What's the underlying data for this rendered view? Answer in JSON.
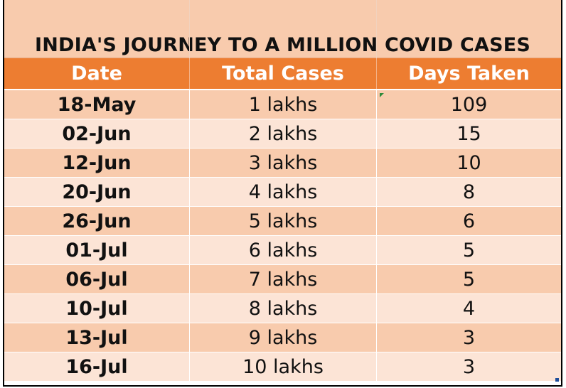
{
  "title": "INDIA'S JOURNEY TO A MILLION COVID CASES",
  "headers": [
    "Date",
    "Total Cases",
    "Days Taken"
  ],
  "rows": [
    {
      "date": "18-May",
      "cases": "1 lakhs",
      "days": "109"
    },
    {
      "date": "02-Jun",
      "cases": "2 lakhs",
      "days": "15"
    },
    {
      "date": "12-Jun",
      "cases": "3 lakhs",
      "days": "10"
    },
    {
      "date": "20-Jun",
      "cases": "4 lakhs",
      "days": "8"
    },
    {
      "date": "26-Jun",
      "cases": "5 lakhs",
      "days": "6"
    },
    {
      "date": "01-Jul",
      "cases": "6 lakhs",
      "days": "5"
    },
    {
      "date": "06-Jul",
      "cases": "7 lakhs",
      "days": "5"
    },
    {
      "date": "10-Jul",
      "cases": "8 lakhs",
      "days": "4"
    },
    {
      "date": "13-Jul",
      "cases": "9 lakhs",
      "days": "3"
    },
    {
      "date": "16-Jul",
      "cases": "10 lakhs",
      "days": "3"
    }
  ],
  "colors": {
    "title_bg": "#f8cbad",
    "header_bg": "#ed7d31",
    "row_odd": "#f8cbad",
    "row_even": "#fce4d6"
  }
}
